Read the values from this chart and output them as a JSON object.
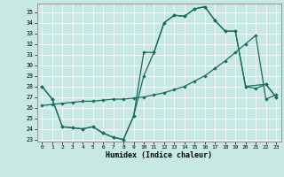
{
  "xlabel": "Humidex (Indice chaleur)",
  "xlim_min": -0.5,
  "xlim_max": 23.5,
  "ylim_min": 22.8,
  "ylim_max": 35.8,
  "yticks": [
    23,
    24,
    25,
    26,
    27,
    28,
    29,
    30,
    31,
    32,
    33,
    34,
    35
  ],
  "xticks": [
    0,
    1,
    2,
    3,
    4,
    5,
    6,
    7,
    8,
    9,
    10,
    11,
    12,
    13,
    14,
    15,
    16,
    17,
    18,
    19,
    20,
    21,
    22,
    23
  ],
  "bg_color": "#c8e8e4",
  "line_color": "#1a6b62",
  "grid_color": "#ffffff",
  "line1_x": [
    0,
    1,
    2,
    3,
    4,
    5,
    6,
    7,
    8,
    9,
    10,
    11,
    12,
    13,
    14,
    15,
    16,
    17,
    18,
    19,
    20,
    21,
    22,
    23
  ],
  "line1_y": [
    28.0,
    26.8,
    24.2,
    24.1,
    24.0,
    24.2,
    23.6,
    23.2,
    23.0,
    25.2,
    31.2,
    31.2,
    34.0,
    34.7,
    34.6,
    35.3,
    35.5,
    34.2,
    33.2,
    33.2,
    28.0,
    27.8,
    28.2,
    27.0
  ],
  "line2_x": [
    0,
    1,
    2,
    3,
    4,
    5,
    6,
    7,
    8,
    9,
    10,
    11,
    12,
    13,
    14,
    15,
    16,
    17,
    18,
    19,
    20,
    22,
    23
  ],
  "line2_y": [
    28.0,
    26.8,
    24.2,
    24.1,
    24.0,
    24.2,
    23.6,
    23.2,
    23.0,
    25.2,
    29.0,
    31.2,
    34.0,
    34.7,
    34.6,
    35.3,
    35.5,
    34.2,
    33.2,
    33.2,
    28.0,
    28.2,
    27.0
  ],
  "line3_x": [
    0,
    1,
    2,
    3,
    4,
    5,
    6,
    7,
    8,
    9,
    10,
    11,
    12,
    13,
    14,
    15,
    16,
    17,
    18,
    19,
    20,
    21,
    22,
    23
  ],
  "line3_y": [
    26.2,
    26.3,
    26.4,
    26.5,
    26.6,
    26.6,
    26.7,
    26.8,
    26.8,
    26.9,
    27.0,
    27.2,
    27.4,
    27.7,
    28.0,
    28.5,
    29.0,
    29.7,
    30.4,
    31.2,
    32.0,
    32.8,
    26.8,
    27.2
  ]
}
